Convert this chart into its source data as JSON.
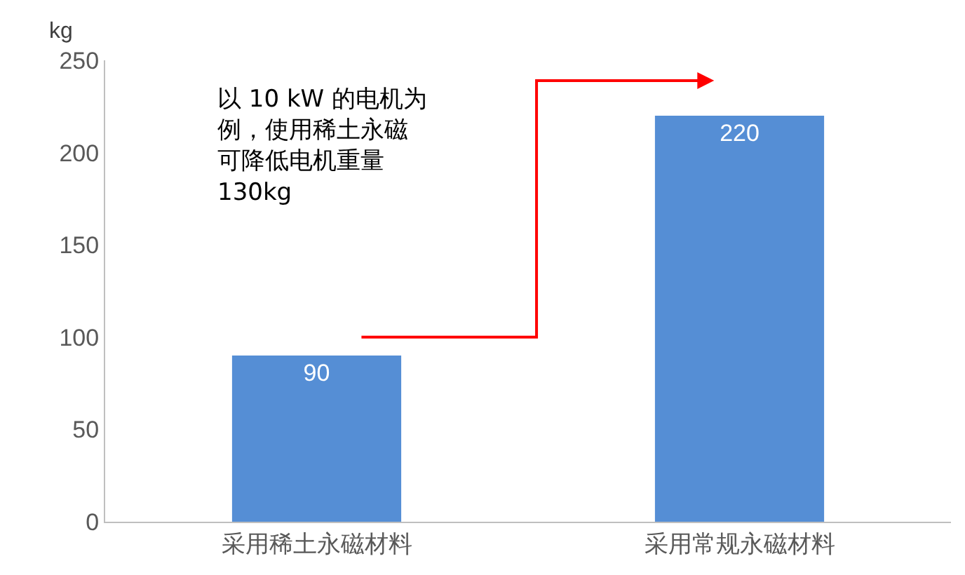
{
  "chart_data": {
    "type": "bar",
    "ylabel": "kg",
    "categories": [
      "采用稀土永磁材料",
      "采用常规永磁材料"
    ],
    "values": [
      90,
      220
    ],
    "color": "#558ed5",
    "ylim": [
      0,
      250
    ],
    "yticks": [
      0,
      50,
      100,
      150,
      200,
      250
    ],
    "data_labels": true,
    "annotations": [
      "以 10 kW 的电机为例，使用稀土永磁可降低电机重量130kg"
    ]
  }
}
